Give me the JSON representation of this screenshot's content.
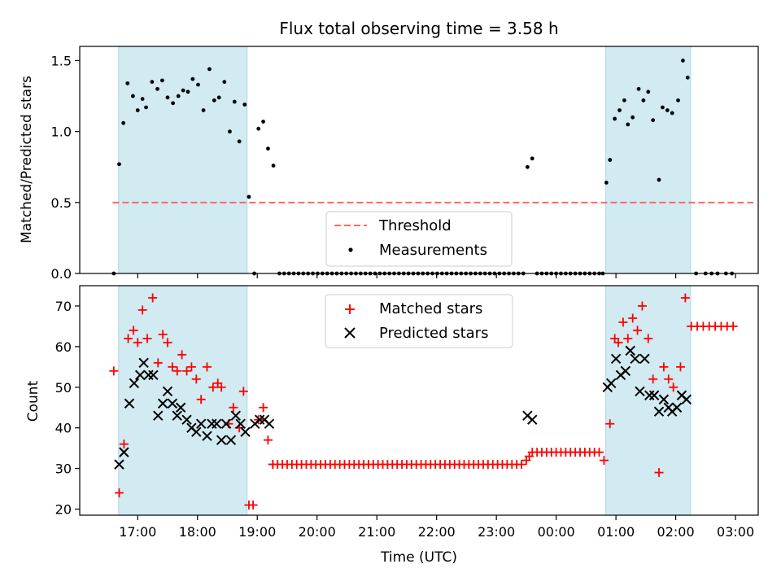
{
  "chart_data": {
    "type": "scatter",
    "title": "Flux total observing time = 3.58 h",
    "xlabel": "Time (UTC)",
    "x_ticks": [
      "17:00",
      "18:00",
      "19:00",
      "20:00",
      "21:00",
      "22:00",
      "23:00",
      "00:00",
      "01:00",
      "02:00",
      "03:00"
    ],
    "x_tick_hours": [
      17,
      18,
      19,
      20,
      21,
      22,
      23,
      24,
      25,
      26,
      27
    ],
    "xlim_hours": [
      16.03,
      27.38
    ],
    "shaded_intervals_hours": [
      [
        16.68,
        18.83
      ],
      [
        24.83,
        26.25
      ]
    ],
    "colors": {
      "shade": "#add8e6",
      "threshold": "#ff6666",
      "matched": "#ff0000",
      "predicted": "#000000",
      "measurement": "#000000"
    },
    "top": {
      "ylabel": "Matched/Predicted stars",
      "ylim": [
        0,
        1.6
      ],
      "y_ticks": [
        "0.0",
        "0.5",
        "1.0",
        "1.5"
      ],
      "y_tick_values": [
        0,
        0.5,
        1.0,
        1.5
      ],
      "threshold": {
        "value": 0.5,
        "x_range_hours": [
          16.58,
          27.3
        ]
      },
      "legend": {
        "position": "lower center",
        "threshold_label": "Threshold",
        "measurements_label": "Measurements"
      },
      "measurements": [
        [
          16.6,
          0.0
        ],
        [
          16.69,
          0.77
        ],
        [
          16.76,
          1.06
        ],
        [
          16.83,
          1.34
        ],
        [
          16.92,
          1.25
        ],
        [
          17.0,
          1.15
        ],
        [
          17.08,
          1.23
        ],
        [
          17.14,
          1.17
        ],
        [
          17.24,
          1.35
        ],
        [
          17.33,
          1.3
        ],
        [
          17.41,
          1.36
        ],
        [
          17.5,
          1.24
        ],
        [
          17.59,
          1.2
        ],
        [
          17.68,
          1.25
        ],
        [
          17.76,
          1.29
        ],
        [
          17.84,
          1.28
        ],
        [
          17.92,
          1.37
        ],
        [
          18.01,
          1.33
        ],
        [
          18.1,
          1.15
        ],
        [
          18.2,
          1.44
        ],
        [
          18.28,
          1.22
        ],
        [
          18.36,
          1.24
        ],
        [
          18.45,
          1.35
        ],
        [
          18.54,
          1.0
        ],
        [
          18.62,
          1.21
        ],
        [
          18.7,
          0.93
        ],
        [
          18.79,
          1.19
        ],
        [
          18.86,
          0.54
        ],
        [
          18.95,
          0.0
        ],
        [
          19.02,
          1.02
        ],
        [
          19.1,
          1.07
        ],
        [
          19.18,
          0.88
        ],
        [
          19.27,
          0.76
        ],
        [
          19.37,
          0.0
        ],
        [
          19.45,
          0.0
        ],
        [
          19.53,
          0.0
        ],
        [
          19.61,
          0.0
        ],
        [
          19.69,
          0.0
        ],
        [
          19.77,
          0.0
        ],
        [
          19.85,
          0.0
        ],
        [
          19.93,
          0.0
        ],
        [
          20.01,
          0.0
        ],
        [
          20.09,
          0.0
        ],
        [
          20.17,
          0.0
        ],
        [
          20.25,
          0.0
        ],
        [
          20.33,
          0.0
        ],
        [
          20.41,
          0.0
        ],
        [
          20.49,
          0.0
        ],
        [
          20.57,
          0.0
        ],
        [
          20.65,
          0.0
        ],
        [
          20.73,
          0.0
        ],
        [
          20.81,
          0.0
        ],
        [
          20.89,
          0.0
        ],
        [
          20.97,
          0.0
        ],
        [
          21.05,
          0.0
        ],
        [
          21.13,
          0.0
        ],
        [
          21.21,
          0.0
        ],
        [
          21.29,
          0.0
        ],
        [
          21.37,
          0.0
        ],
        [
          21.45,
          0.0
        ],
        [
          21.53,
          0.0
        ],
        [
          21.61,
          0.0
        ],
        [
          21.69,
          0.0
        ],
        [
          21.77,
          0.0
        ],
        [
          21.85,
          0.0
        ],
        [
          21.93,
          0.0
        ],
        [
          22.01,
          0.0
        ],
        [
          22.09,
          0.0
        ],
        [
          22.17,
          0.0
        ],
        [
          22.25,
          0.0
        ],
        [
          22.33,
          0.0
        ],
        [
          22.41,
          0.0
        ],
        [
          22.49,
          0.0
        ],
        [
          22.57,
          0.0
        ],
        [
          22.65,
          0.0
        ],
        [
          22.73,
          0.0
        ],
        [
          22.81,
          0.0
        ],
        [
          22.89,
          0.0
        ],
        [
          22.97,
          0.0
        ],
        [
          23.05,
          0.0
        ],
        [
          23.13,
          0.0
        ],
        [
          23.21,
          0.0
        ],
        [
          23.29,
          0.0
        ],
        [
          23.37,
          0.0
        ],
        [
          23.45,
          0.0
        ],
        [
          23.52,
          0.75
        ],
        [
          23.6,
          0.81
        ],
        [
          23.68,
          0.0
        ],
        [
          23.76,
          0.0
        ],
        [
          23.84,
          0.0
        ],
        [
          23.92,
          0.0
        ],
        [
          24.0,
          0.0
        ],
        [
          24.08,
          0.0
        ],
        [
          24.16,
          0.0
        ],
        [
          24.24,
          0.0
        ],
        [
          24.32,
          0.0
        ],
        [
          24.4,
          0.0
        ],
        [
          24.48,
          0.0
        ],
        [
          24.56,
          0.0
        ],
        [
          24.64,
          0.0
        ],
        [
          24.72,
          0.0
        ],
        [
          24.78,
          0.0
        ],
        [
          24.84,
          0.64
        ],
        [
          24.9,
          0.8
        ],
        [
          24.98,
          1.09
        ],
        [
          25.06,
          1.15
        ],
        [
          25.14,
          1.22
        ],
        [
          25.2,
          1.05
        ],
        [
          25.28,
          1.1
        ],
        [
          25.38,
          1.3
        ],
        [
          25.46,
          1.22
        ],
        [
          25.54,
          1.28
        ],
        [
          25.62,
          1.08
        ],
        [
          25.72,
          0.66
        ],
        [
          25.78,
          1.17
        ],
        [
          25.86,
          1.15
        ],
        [
          25.94,
          1.13
        ],
        [
          26.04,
          1.22
        ],
        [
          26.12,
          1.5
        ],
        [
          26.2,
          1.38
        ],
        [
          26.34,
          0.0
        ],
        [
          26.5,
          0.0
        ],
        [
          26.6,
          0.0
        ],
        [
          26.7,
          0.0
        ],
        [
          26.84,
          0.0
        ],
        [
          26.94,
          0.0
        ]
      ]
    },
    "bottom": {
      "ylabel": "Count",
      "ylim": [
        18.5,
        75
      ],
      "y_ticks": [
        "20",
        "30",
        "40",
        "50",
        "60",
        "70"
      ],
      "y_tick_values": [
        20,
        30,
        40,
        50,
        60,
        70
      ],
      "legend": {
        "position": "upper center",
        "matched_label": "Matched stars",
        "predicted_label": "Predicted stars"
      },
      "matched": [
        [
          16.6,
          54
        ],
        [
          16.69,
          24
        ],
        [
          16.77,
          36
        ],
        [
          16.84,
          62
        ],
        [
          16.93,
          64
        ],
        [
          17.0,
          61
        ],
        [
          17.08,
          69
        ],
        [
          17.16,
          62
        ],
        [
          17.25,
          72
        ],
        [
          17.34,
          56
        ],
        [
          17.42,
          63
        ],
        [
          17.5,
          61
        ],
        [
          17.58,
          55
        ],
        [
          17.66,
          54
        ],
        [
          17.74,
          58
        ],
        [
          17.82,
          54
        ],
        [
          17.9,
          55
        ],
        [
          17.98,
          52
        ],
        [
          18.06,
          47
        ],
        [
          18.16,
          55
        ],
        [
          18.26,
          50
        ],
        [
          18.34,
          51
        ],
        [
          18.4,
          50
        ],
        [
          18.52,
          41
        ],
        [
          18.6,
          45
        ],
        [
          18.7,
          40
        ],
        [
          18.77,
          49
        ],
        [
          18.86,
          21
        ],
        [
          18.93,
          21
        ],
        [
          19.02,
          42
        ],
        [
          19.1,
          45
        ],
        [
          19.18,
          37
        ],
        [
          19.26,
          31
        ]
      ],
      "matched_flat_31": {
        "x_range_hours": [
          19.26,
          23.42
        ],
        "step_hours": 0.08,
        "value": 31
      },
      "matched_flat_34": {
        "x_range_hours": [
          23.6,
          24.78
        ],
        "step_hours": 0.08,
        "value": 34
      },
      "matched_extra": [
        [
          23.5,
          32
        ],
        [
          23.55,
          33
        ],
        [
          24.8,
          32
        ]
      ],
      "matched_late": [
        [
          24.9,
          41
        ],
        [
          24.98,
          62
        ],
        [
          25.04,
          61
        ],
        [
          25.12,
          66
        ],
        [
          25.2,
          62
        ],
        [
          25.28,
          67
        ],
        [
          25.36,
          64
        ],
        [
          25.44,
          70
        ],
        [
          25.54,
          62
        ],
        [
          25.62,
          52
        ],
        [
          25.72,
          29
        ],
        [
          25.8,
          55
        ],
        [
          25.88,
          52
        ],
        [
          25.96,
          50
        ],
        [
          26.08,
          55
        ],
        [
          26.16,
          72
        ]
      ],
      "matched_flat_65": {
        "x_range_hours": [
          26.26,
          26.96
        ],
        "step_hours": 0.1,
        "value": 65
      },
      "predicted": [
        [
          16.69,
          31
        ],
        [
          16.77,
          34
        ],
        [
          16.86,
          46
        ],
        [
          16.94,
          51
        ],
        [
          17.04,
          53
        ],
        [
          17.1,
          56
        ],
        [
          17.18,
          53
        ],
        [
          17.26,
          53
        ],
        [
          17.34,
          43
        ],
        [
          17.42,
          46
        ],
        [
          17.5,
          49
        ],
        [
          17.58,
          46
        ],
        [
          17.66,
          43
        ],
        [
          17.72,
          45
        ],
        [
          17.82,
          42
        ],
        [
          17.9,
          40
        ],
        [
          17.98,
          39
        ],
        [
          18.06,
          41
        ],
        [
          18.16,
          38
        ],
        [
          18.24,
          41
        ],
        [
          18.32,
          41
        ],
        [
          18.4,
          37
        ],
        [
          18.48,
          41
        ],
        [
          18.56,
          37
        ],
        [
          18.64,
          43
        ],
        [
          18.72,
          41
        ],
        [
          18.8,
          39
        ],
        [
          18.96,
          41
        ],
        [
          19.04,
          42
        ],
        [
          19.12,
          42
        ],
        [
          19.2,
          41
        ],
        [
          23.52,
          43
        ],
        [
          23.6,
          42
        ],
        [
          24.86,
          50
        ],
        [
          24.92,
          51
        ],
        [
          25.0,
          57
        ],
        [
          25.08,
          53
        ],
        [
          25.16,
          54
        ],
        [
          25.24,
          59
        ],
        [
          25.32,
          57
        ],
        [
          25.4,
          49
        ],
        [
          25.48,
          57
        ],
        [
          25.56,
          48
        ],
        [
          25.64,
          48
        ],
        [
          25.72,
          44
        ],
        [
          25.8,
          47
        ],
        [
          25.88,
          45
        ],
        [
          25.94,
          44
        ],
        [
          26.02,
          45
        ],
        [
          26.1,
          48
        ],
        [
          26.18,
          47
        ]
      ]
    }
  }
}
